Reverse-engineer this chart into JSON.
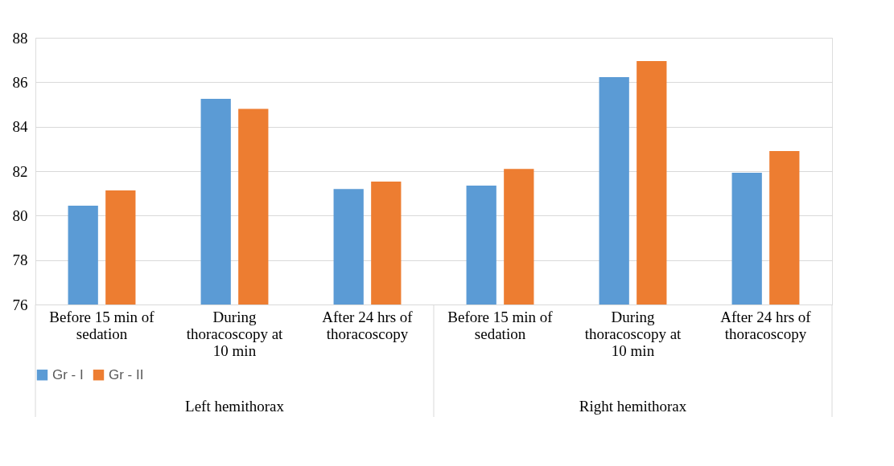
{
  "chart_data": {
    "type": "bar",
    "categories": [
      "Before 15 min of sedation",
      "During thoracoscopy at 10 min",
      "After 24 hrs of thoracoscopy",
      "Before 15 min of sedation",
      "During thoracoscopy at 10 min",
      "After 24 hrs of thoracoscopy"
    ],
    "series": [
      {
        "name": "Gr - I",
        "color": "#5b9bd5",
        "values": [
          80.45,
          85.25,
          81.2,
          81.35,
          86.23,
          81.93
        ]
      },
      {
        "name": "Gr - II",
        "color": "#ed7d31",
        "values": [
          81.13,
          84.8,
          81.53,
          82.1,
          86.95,
          82.9
        ]
      }
    ],
    "annotations": [
      "Left  hemithorax",
      "Right hemithorax"
    ],
    "ylim": [
      76,
      88
    ],
    "yticks": [
      76,
      78,
      80,
      82,
      84,
      86,
      88
    ],
    "grid": "y",
    "legend": "bottom"
  }
}
